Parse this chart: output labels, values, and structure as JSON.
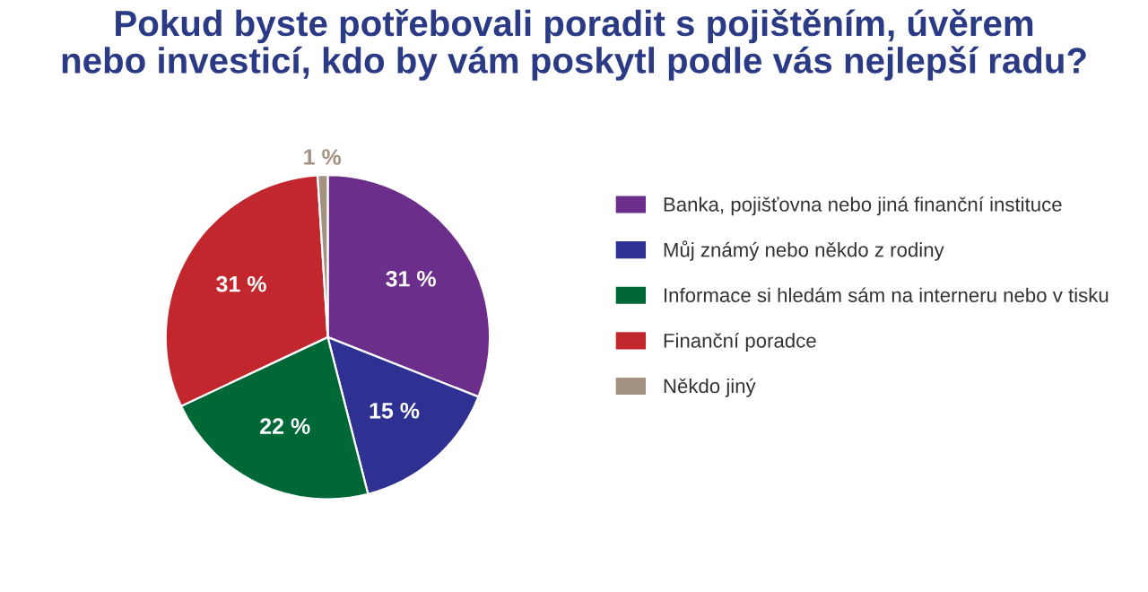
{
  "chart_data": {
    "type": "pie",
    "title": "Pokud byste potřebovali poradit s pojištěním, úvěrem\nnebo investicí, kdo by vám poskytl podle vás nejlepší radu?",
    "categories": [
      "Banka, pojišťovna nebo jiná finanční instituce",
      "Můj známý nebo někdo z rodiny",
      "Informace si hledám sám na interneru nebo v tisku",
      "Finanční poradce",
      "Někdo jiný"
    ],
    "values": [
      31,
      15,
      22,
      31,
      1
    ],
    "colors": [
      "#6b2f8b",
      "#2e3192",
      "#006837",
      "#c1272d",
      "#a39181"
    ],
    "value_labels": [
      "31 %",
      "15 %",
      "22 %",
      "31 %",
      "1 %"
    ],
    "legend": "right"
  }
}
